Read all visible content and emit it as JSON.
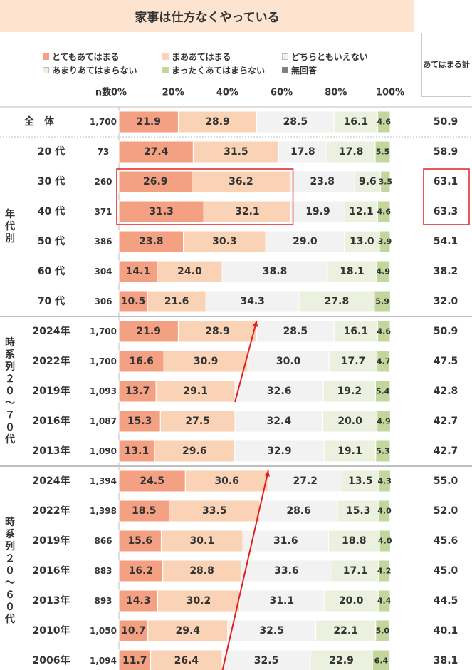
{
  "chart_data": {
    "type": "bar",
    "orientation": "horizontal",
    "stacked": "percent",
    "title": "家事は仕方なくやっている",
    "n_header": "n数",
    "sum_header": "あてはまる計",
    "x_ticks": [
      "0%",
      "20%",
      "40%",
      "60%",
      "80%",
      "100%"
    ],
    "xlim": [
      0,
      100
    ],
    "legend_placement": "top",
    "series": [
      {
        "name": "とてもあてはまる",
        "color": "#f4a183"
      },
      {
        "name": "まああてはまる",
        "color": "#fad3b6"
      },
      {
        "name": "どちらともいえない",
        "color": "#f2f2f2"
      },
      {
        "name": "あまりあてはまらない",
        "color": "#ebf1de"
      },
      {
        "name": "まったくあてはまらない",
        "color": "#c3d69b"
      },
      {
        "name": "無回答",
        "color": "#7f7f7f"
      }
    ],
    "groups": [
      {
        "label": "",
        "rows": [
          {
            "label": "全　体",
            "n": "1,700",
            "values": [
              21.9,
              28.9,
              28.5,
              16.1,
              4.6
            ],
            "sum": "50.9"
          }
        ]
      },
      {
        "label": "年代別",
        "rows": [
          {
            "label": "20 代",
            "n": "73",
            "values": [
              27.4,
              31.5,
              17.8,
              17.8,
              5.5
            ],
            "sum": "58.9"
          },
          {
            "label": "30 代",
            "n": "260",
            "values": [
              26.9,
              36.2,
              23.8,
              9.6,
              3.5
            ],
            "sum": "63.1"
          },
          {
            "label": "40 代",
            "n": "371",
            "values": [
              31.3,
              32.1,
              19.9,
              12.1,
              4.6
            ],
            "sum": "63.3"
          },
          {
            "label": "50 代",
            "n": "386",
            "values": [
              23.8,
              30.3,
              29.0,
              13.0,
              3.9
            ],
            "sum": "54.1"
          },
          {
            "label": "60 代",
            "n": "304",
            "values": [
              14.1,
              24.0,
              38.8,
              18.1,
              4.9
            ],
            "sum": "38.2"
          },
          {
            "label": "70 代",
            "n": "306",
            "values": [
              10.5,
              21.6,
              34.3,
              27.8,
              5.9
            ],
            "sum": "32.0"
          }
        ]
      },
      {
        "label": "時系列２０〜７０代",
        "rows": [
          {
            "label": "2024年",
            "n": "1,700",
            "values": [
              21.9,
              28.9,
              28.5,
              16.1,
              4.6
            ],
            "sum": "50.9"
          },
          {
            "label": "2022年",
            "n": "1,700",
            "values": [
              16.6,
              30.9,
              30.0,
              17.7,
              4.7
            ],
            "sum": "47.5"
          },
          {
            "label": "2019年",
            "n": "1,093",
            "values": [
              13.7,
              29.1,
              32.6,
              19.2,
              5.4
            ],
            "sum": "42.8"
          },
          {
            "label": "2016年",
            "n": "1,087",
            "values": [
              15.3,
              27.5,
              32.4,
              20.0,
              4.9
            ],
            "sum": "42.7"
          },
          {
            "label": "2013年",
            "n": "1,090",
            "values": [
              13.1,
              29.6,
              32.9,
              19.1,
              5.3
            ],
            "sum": "42.7"
          }
        ]
      },
      {
        "label": "時系列２０〜６０代",
        "rows": [
          {
            "label": "2024年",
            "n": "1,394",
            "values": [
              24.5,
              30.6,
              27.2,
              13.5,
              4.3
            ],
            "sum": "55.0"
          },
          {
            "label": "2022年",
            "n": "1,398",
            "values": [
              18.5,
              33.5,
              28.6,
              15.3,
              4.0
            ],
            "sum": "52.0"
          },
          {
            "label": "2019年",
            "n": "866",
            "values": [
              15.6,
              30.1,
              31.6,
              18.8,
              4.0
            ],
            "sum": "45.6"
          },
          {
            "label": "2016年",
            "n": "883",
            "values": [
              16.2,
              28.8,
              33.6,
              17.1,
              4.2
            ],
            "sum": "45.0"
          },
          {
            "label": "2013年",
            "n": "893",
            "values": [
              14.3,
              30.2,
              31.1,
              20.0,
              4.4
            ],
            "sum": "44.5"
          },
          {
            "label": "2010年",
            "n": "1,050",
            "values": [
              10.7,
              29.4,
              32.5,
              22.1,
              5.0
            ],
            "sum": "40.1"
          },
          {
            "label": "2006年",
            "n": "1,094",
            "values": [
              11.7,
              26.4,
              32.5,
              22.9,
              6.4
            ],
            "sum": "38.1"
          }
        ]
      }
    ],
    "annotations": {
      "highlight_color": "#e02020",
      "arrow_color": "#e02020"
    }
  }
}
